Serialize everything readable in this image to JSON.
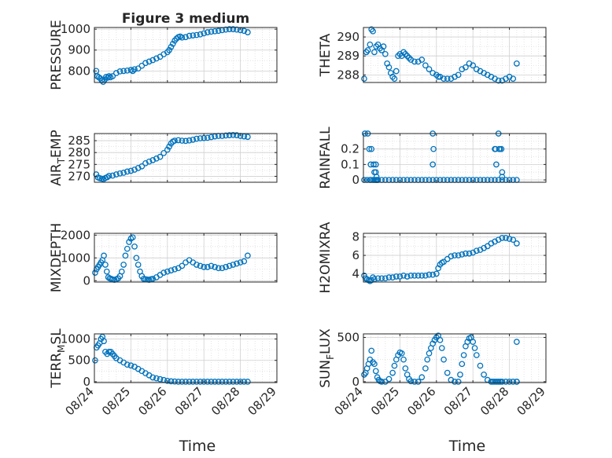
{
  "chart_data": [
    {
      "id": "pressure",
      "type": "scatter",
      "title": "Figure 3 medium",
      "ylabel": "PRESSURE",
      "ylabel_sub": "",
      "ylim": [
        745,
        1008
      ],
      "yticks": [
        800,
        900,
        1000
      ],
      "xlim": [
        0,
        5
      ],
      "series": [
        {
          "x": [
            0.05,
            0.08,
            0.12,
            0.16,
            0.2,
            0.24,
            0.28,
            0.32,
            0.36,
            0.4,
            0.44,
            0.5,
            0.6,
            0.7,
            0.8,
            0.9,
            1.0,
            1.05,
            1.1,
            1.2,
            1.3,
            1.4,
            1.5,
            1.6,
            1.7,
            1.8,
            1.9,
            2.0,
            2.05,
            2.1,
            2.15,
            2.2,
            2.25,
            2.3,
            2.35,
            2.4,
            2.5,
            2.6,
            2.7,
            2.8,
            2.9,
            3.0,
            3.1,
            3.2,
            3.3,
            3.4,
            3.5,
            3.6,
            3.7,
            3.8,
            3.9,
            4.0,
            4.1,
            4.2
          ],
          "values": [
            800,
            775,
            770,
            765,
            755,
            748,
            758,
            772,
            768,
            775,
            770,
            775,
            790,
            798,
            800,
            802,
            805,
            800,
            808,
            812,
            825,
            838,
            845,
            852,
            860,
            868,
            880,
            890,
            900,
            915,
            930,
            945,
            955,
            962,
            965,
            960,
            962,
            968,
            970,
            972,
            975,
            980,
            985,
            988,
            990,
            992,
            995,
            998,
            1000,
            1000,
            998,
            995,
            992,
            985
          ]
        }
      ]
    },
    {
      "id": "theta",
      "type": "scatter",
      "title": "",
      "ylabel": "THETA",
      "ylabel_sub": "",
      "ylim": [
        287.6,
        290.5
      ],
      "yticks": [
        288,
        289,
        290
      ],
      "xlim": [
        0,
        5
      ],
      "series": [
        {
          "x": [
            0.02,
            0.08,
            0.12,
            0.18,
            0.22,
            0.26,
            0.3,
            0.35,
            0.4,
            0.45,
            0.5,
            0.55,
            0.6,
            0.65,
            0.7,
            0.75,
            0.8,
            0.85,
            0.9,
            0.95,
            1.0,
            1.05,
            1.1,
            1.15,
            1.2,
            1.25,
            1.3,
            1.4,
            1.5,
            1.6,
            1.7,
            1.8,
            1.9,
            2.0,
            2.05,
            2.1,
            2.2,
            2.3,
            2.4,
            2.5,
            2.6,
            2.7,
            2.8,
            2.9,
            3.0,
            3.1,
            3.2,
            3.3,
            3.4,
            3.5,
            3.6,
            3.7,
            3.8,
            3.9,
            4.0,
            4.1,
            4.2
          ],
          "values": [
            287.8,
            289.2,
            289.3,
            289.6,
            290.4,
            290.3,
            289.2,
            289.5,
            289.6,
            289.4,
            289.3,
            289.5,
            289.1,
            288.6,
            288.4,
            288.1,
            287.9,
            287.8,
            288.2,
            289.0,
            289.1,
            289.0,
            289.2,
            289.1,
            289.0,
            288.9,
            288.8,
            288.7,
            288.7,
            288.8,
            288.5,
            288.3,
            288.1,
            288.0,
            287.9,
            287.9,
            287.8,
            287.8,
            287.8,
            287.9,
            288.0,
            288.3,
            288.4,
            288.6,
            288.5,
            288.3,
            288.2,
            288.1,
            288.0,
            287.9,
            287.8,
            287.7,
            287.7,
            287.8,
            287.9,
            287.8,
            288.6
          ]
        }
      ]
    },
    {
      "id": "air_temp",
      "type": "scatter",
      "title": "",
      "ylabel": "AIR",
      "ylabel_sub": "T",
      "ylabel_tail": "EMP",
      "ylim": [
        267.5,
        288
      ],
      "yticks": [
        270,
        275,
        280,
        285
      ],
      "xlim": [
        0,
        5
      ],
      "series": [
        {
          "x": [
            0.05,
            0.1,
            0.15,
            0.2,
            0.25,
            0.3,
            0.35,
            0.4,
            0.5,
            0.6,
            0.7,
            0.8,
            0.9,
            1.0,
            1.1,
            1.2,
            1.3,
            1.4,
            1.5,
            1.6,
            1.7,
            1.8,
            1.9,
            2.0,
            2.05,
            2.1,
            2.15,
            2.2,
            2.3,
            2.4,
            2.5,
            2.6,
            2.7,
            2.8,
            2.9,
            3.0,
            3.1,
            3.2,
            3.3,
            3.4,
            3.5,
            3.6,
            3.7,
            3.8,
            3.9,
            4.0,
            4.1,
            4.2
          ],
          "values": [
            270.8,
            269.5,
            269.2,
            269.0,
            268.8,
            269.3,
            269.6,
            270.2,
            270.3,
            270.8,
            271.2,
            271.5,
            272.0,
            272.3,
            272.8,
            273.5,
            274.2,
            275.5,
            276.2,
            276.8,
            277.5,
            278.2,
            279.8,
            281.2,
            282.5,
            283.8,
            284.6,
            285.0,
            285.2,
            285.0,
            284.9,
            285.1,
            285.4,
            285.8,
            286.0,
            286.1,
            286.2,
            286.5,
            286.8,
            287.0,
            287.0,
            287.2,
            287.3,
            287.4,
            287.3,
            287.0,
            286.8,
            286.6
          ]
        }
      ]
    },
    {
      "id": "rainfall",
      "type": "scatter",
      "title": "",
      "ylabel": "RAINFALL",
      "ylabel_sub": "",
      "ylim": [
        -0.015,
        0.3
      ],
      "yticks": [
        0,
        0.1,
        0.2
      ],
      "xlim": [
        0,
        5
      ],
      "series": [
        {
          "x": [
            0.02,
            0.1,
            0.18,
            0.2,
            0.26,
            0.3,
            0.34,
            0.36,
            0.38,
            0.4,
            0.5,
            0.6,
            0.7,
            0.8,
            0.9,
            1.0,
            1.1,
            1.2,
            1.3,
            1.4,
            1.5,
            1.6,
            1.7,
            1.8,
            1.9,
            2.0,
            2.1,
            2.2,
            2.3,
            2.4,
            2.5,
            2.6,
            2.7,
            2.8,
            2.9,
            3.0,
            3.1,
            3.2,
            3.3,
            3.4,
            3.5,
            3.6,
            3.7,
            3.8,
            3.9,
            4.0,
            4.1,
            4.2,
            0.04,
            0.12,
            0.16,
            0.2,
            0.22,
            0.28,
            0.3,
            0.34,
            0.34,
            0.36,
            1.9,
            1.92,
            1.9,
            3.6,
            3.62,
            3.64,
            3.7,
            3.72,
            3.74,
            3.78,
            3.8,
            3.8
          ],
          "values": [
            0,
            0,
            0,
            0,
            0,
            0,
            0,
            0,
            0,
            0,
            0,
            0,
            0,
            0,
            0,
            0,
            0,
            0,
            0,
            0,
            0,
            0,
            0,
            0,
            0,
            0,
            0,
            0,
            0,
            0,
            0,
            0,
            0,
            0,
            0,
            0,
            0,
            0,
            0,
            0,
            0,
            0,
            0,
            0,
            0,
            0,
            0,
            0,
            0.3,
            0.3,
            0.2,
            0.1,
            0.2,
            0.1,
            0.05,
            0.1,
            0.05,
            0.02,
            0.3,
            0.2,
            0.1,
            0.2,
            0.2,
            0.1,
            0.3,
            0.2,
            0.2,
            0.2,
            0.05,
            0.02
          ]
        }
      ]
    },
    {
      "id": "mixdepth",
      "type": "scatter",
      "title": "",
      "ylabel": "MIXDEPTH",
      "ylabel_sub": "",
      "ylim": [
        -60,
        2080
      ],
      "yticks": [
        0,
        1000,
        2000
      ],
      "xlim": [
        0,
        5
      ],
      "series": [
        {
          "x": [
            0.02,
            0.06,
            0.1,
            0.14,
            0.18,
            0.22,
            0.26,
            0.3,
            0.34,
            0.38,
            0.42,
            0.46,
            0.5,
            0.55,
            0.6,
            0.65,
            0.7,
            0.75,
            0.8,
            0.85,
            0.9,
            0.95,
            1.0,
            1.05,
            1.1,
            1.15,
            1.2,
            1.25,
            1.3,
            1.35,
            1.4,
            1.45,
            1.5,
            1.55,
            1.6,
            1.7,
            1.8,
            1.9,
            2.0,
            2.1,
            2.2,
            2.3,
            2.4,
            2.5,
            2.6,
            2.7,
            2.8,
            2.9,
            3.0,
            3.1,
            3.2,
            3.3,
            3.4,
            3.5,
            3.6,
            3.7,
            3.8,
            3.9,
            4.0,
            4.1,
            4.2
          ],
          "values": [
            350,
            500,
            600,
            700,
            800,
            900,
            1100,
            700,
            400,
            150,
            100,
            80,
            50,
            40,
            60,
            100,
            200,
            400,
            700,
            1100,
            1400,
            1700,
            1850,
            1900,
            1500,
            1000,
            700,
            400,
            200,
            80,
            60,
            50,
            40,
            60,
            80,
            150,
            250,
            350,
            400,
            450,
            500,
            550,
            650,
            800,
            900,
            800,
            700,
            650,
            600,
            600,
            650,
            600,
            550,
            550,
            600,
            650,
            700,
            750,
            800,
            850,
            1100
          ]
        }
      ]
    },
    {
      "id": "h2omixra",
      "type": "scatter",
      "title": "",
      "ylabel": "H2OMIXRA",
      "ylabel_sub": "",
      "ylim": [
        3.1,
        8.4
      ],
      "yticks": [
        4,
        6,
        8
      ],
      "xlim": [
        0,
        5
      ],
      "series": [
        {
          "x": [
            0.02,
            0.06,
            0.1,
            0.14,
            0.18,
            0.22,
            0.26,
            0.3,
            0.4,
            0.5,
            0.6,
            0.7,
            0.8,
            0.9,
            1.0,
            1.1,
            1.2,
            1.3,
            1.4,
            1.5,
            1.6,
            1.7,
            1.8,
            1.9,
            2.0,
            2.05,
            2.1,
            2.15,
            2.2,
            2.3,
            2.4,
            2.5,
            2.6,
            2.7,
            2.8,
            2.9,
            3.0,
            3.1,
            3.2,
            3.3,
            3.4,
            3.5,
            3.6,
            3.7,
            3.8,
            3.9,
            4.0,
            4.1,
            4.2
          ],
          "values": [
            3.8,
            3.5,
            3.4,
            3.3,
            3.2,
            3.3,
            3.6,
            3.4,
            3.5,
            3.5,
            3.5,
            3.6,
            3.6,
            3.7,
            3.7,
            3.8,
            3.7,
            3.8,
            3.8,
            3.8,
            3.8,
            3.8,
            3.9,
            3.9,
            4.0,
            4.6,
            5.0,
            5.2,
            5.3,
            5.6,
            5.9,
            6.0,
            6.0,
            6.1,
            6.2,
            6.2,
            6.3,
            6.5,
            6.6,
            6.8,
            7.0,
            7.3,
            7.5,
            7.7,
            7.9,
            7.9,
            7.8,
            7.7,
            7.3
          ]
        }
      ]
    },
    {
      "id": "terr_msl",
      "type": "scatter",
      "title": "",
      "ylabel": "TERR",
      "ylabel_sub": "M",
      "ylabel_tail": "SL",
      "ylim": [
        -20,
        1120
      ],
      "yticks": [
        0,
        500,
        1000
      ],
      "xlim": [
        0,
        5
      ],
      "series": [
        {
          "x": [
            0.02,
            0.06,
            0.1,
            0.14,
            0.18,
            0.22,
            0.26,
            0.3,
            0.35,
            0.4,
            0.45,
            0.5,
            0.55,
            0.6,
            0.7,
            0.8,
            0.9,
            1.0,
            1.1,
            1.2,
            1.3,
            1.4,
            1.5,
            1.6,
            1.7,
            1.8,
            1.9,
            2.0,
            2.1,
            2.2,
            2.3,
            2.4,
            2.5,
            2.6,
            2.7,
            2.8,
            2.9,
            3.0,
            3.1,
            3.2,
            3.3,
            3.4,
            3.5,
            3.6,
            3.7,
            3.8,
            3.9,
            4.0,
            4.1,
            4.2
          ],
          "values": [
            500,
            800,
            850,
            900,
            1000,
            1050,
            950,
            700,
            650,
            700,
            700,
            650,
            600,
            550,
            500,
            450,
            400,
            380,
            350,
            300,
            250,
            200,
            150,
            100,
            80,
            60,
            40,
            20,
            10,
            5,
            0,
            0,
            0,
            0,
            0,
            0,
            0,
            0,
            0,
            0,
            0,
            0,
            0,
            0,
            0,
            0,
            0,
            0,
            0,
            0
          ]
        }
      ]
    },
    {
      "id": "sun_flux",
      "type": "scatter",
      "title": "",
      "ylabel": "SUN",
      "ylabel_sub": "F",
      "ylabel_tail": "LUX",
      "ylim": [
        -10,
        540
      ],
      "yticks": [
        0,
        500
      ],
      "xlim": [
        0,
        5
      ],
      "series": [
        {
          "x": [
            0.02,
            0.06,
            0.1,
            0.14,
            0.18,
            0.22,
            0.26,
            0.3,
            0.34,
            0.38,
            0.42,
            0.46,
            0.5,
            0.6,
            0.7,
            0.8,
            0.85,
            0.9,
            0.95,
            1.0,
            1.05,
            1.1,
            1.15,
            1.2,
            1.25,
            1.3,
            1.4,
            1.5,
            1.6,
            1.7,
            1.75,
            1.8,
            1.85,
            1.9,
            1.95,
            2.0,
            2.05,
            2.1,
            2.15,
            2.2,
            2.3,
            2.4,
            2.5,
            2.6,
            2.65,
            2.7,
            2.75,
            2.8,
            2.85,
            2.9,
            2.95,
            3.0,
            3.05,
            3.1,
            3.2,
            3.3,
            3.4,
            3.5,
            3.55,
            3.6,
            3.65,
            3.7,
            3.75,
            3.8,
            3.9,
            4.0,
            4.1,
            4.2,
            4.2,
            4.2
          ],
          "values": [
            80,
            100,
            150,
            200,
            250,
            350,
            220,
            200,
            120,
            50,
            20,
            5,
            0,
            0,
            30,
            100,
            180,
            250,
            300,
            330,
            320,
            250,
            150,
            80,
            30,
            5,
            0,
            0,
            50,
            150,
            250,
            320,
            380,
            430,
            470,
            500,
            520,
            470,
            380,
            250,
            100,
            20,
            0,
            0,
            80,
            200,
            300,
            400,
            450,
            490,
            500,
            450,
            380,
            300,
            180,
            80,
            20,
            0,
            0,
            0,
            0,
            0,
            0,
            0,
            0,
            0,
            0,
            0,
            0,
            450
          ]
        }
      ]
    }
  ],
  "x_axis": {
    "label": "Time",
    "ticks": [
      {
        "value": 0,
        "label": "08/24"
      },
      {
        "value": 1,
        "label": "08/25"
      },
      {
        "value": 2,
        "label": "08/26"
      },
      {
        "value": 3,
        "label": "08/27"
      },
      {
        "value": 4,
        "label": "08/28"
      },
      {
        "value": 5,
        "label": "08/29"
      }
    ]
  },
  "colors": {
    "marker": "#0072bd",
    "axis": "#262626",
    "grid": "#dedede",
    "background": "#ffffff"
  }
}
